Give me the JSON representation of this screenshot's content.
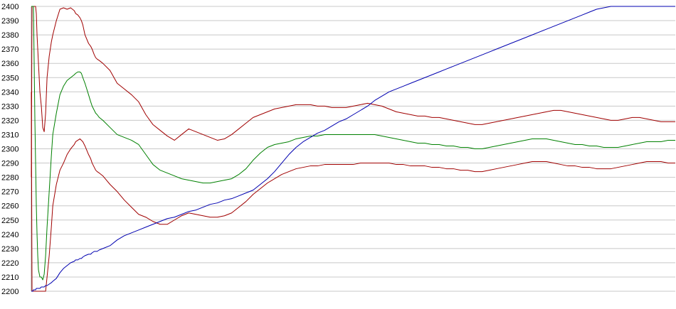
{
  "chart_data": {
    "type": "line",
    "title": "",
    "xlabel": "",
    "ylabel": "",
    "ylim": [
      2200,
      2400
    ],
    "yticks": [
      2200,
      2210,
      2220,
      2230,
      2240,
      2250,
      2260,
      2270,
      2280,
      2290,
      2300,
      2310,
      2320,
      2330,
      2340,
      2350,
      2360,
      2370,
      2380,
      2390,
      2400
    ],
    "grid": true,
    "legend": "none",
    "x": [
      0,
      1,
      2,
      3,
      4,
      5,
      6,
      7,
      8,
      9,
      10,
      12,
      14,
      16,
      18,
      20,
      22,
      25,
      28,
      30,
      35,
      40,
      45,
      50,
      55,
      60,
      62,
      65,
      68,
      70,
      72,
      75,
      80,
      83,
      85,
      88,
      90,
      92,
      95,
      100,
      110,
      120,
      130,
      140,
      150,
      160,
      170,
      180,
      190,
      200,
      210,
      220,
      230,
      240,
      250,
      260,
      270,
      280,
      290,
      300,
      310,
      320,
      330,
      340,
      350,
      360,
      370,
      380,
      390,
      400,
      410,
      420,
      430,
      440,
      450,
      460,
      470,
      480,
      490,
      500,
      510,
      520,
      530,
      540,
      550,
      560,
      570,
      580,
      590,
      600,
      610,
      620,
      630,
      640,
      650,
      660,
      670,
      680,
      690,
      700,
      710,
      720,
      730,
      740,
      750,
      760,
      770,
      780,
      790,
      800,
      810,
      820,
      830,
      840,
      850,
      860,
      870,
      880,
      890,
      900
    ],
    "series": [
      {
        "color": "#a00000",
        "values": [
          2280,
          2400,
          2400,
          2400,
          2400,
          2400,
          2400,
          2395,
          2380,
          2370,
          2360,
          2340,
          2330,
          2315,
          2312,
          2325,
          2350,
          2365,
          2375,
          2380,
          2390,
          2398,
          2399,
          2398,
          2399,
          2397,
          2395,
          2394,
          2392,
          2390,
          2387,
          2380,
          2374,
          2372,
          2370,
          2366,
          2364,
          2363,
          2362,
          2360,
          2355,
          2346,
          2342,
          2338,
          2333,
          2324,
          2317,
          2313,
          2309,
          2306,
          2310,
          2314,
          2312,
          2310,
          2308,
          2306,
          2307,
          2310,
          2314,
          2318,
          2322,
          2324,
          2326,
          2328,
          2329,
          2330,
          2331,
          2331,
          2331,
          2330,
          2330,
          2329,
          2329,
          2329,
          2330,
          2331,
          2332,
          2331,
          2330,
          2328,
          2326,
          2325,
          2324,
          2323,
          2323,
          2322,
          2322,
          2321,
          2320,
          2319,
          2318,
          2317,
          2317,
          2318,
          2319,
          2320,
          2321,
          2322,
          2323,
          2324,
          2325,
          2326,
          2327,
          2327,
          2326,
          2325,
          2324,
          2323,
          2322,
          2321,
          2320,
          2320,
          2321,
          2322,
          2322,
          2321,
          2320,
          2319,
          2319,
          2319
        ]
      },
      {
        "color": "#008000",
        "values": [
          2400,
          2400,
          2400,
          2400,
          2360,
          2320,
          2290,
          2260,
          2240,
          2225,
          2215,
          2210,
          2210,
          2208,
          2212,
          2225,
          2245,
          2270,
          2295,
          2310,
          2325,
          2338,
          2344,
          2348,
          2350,
          2352,
          2353,
          2354,
          2354,
          2353,
          2350,
          2346,
          2338,
          2333,
          2330,
          2327,
          2325,
          2324,
          2322,
          2320,
          2315,
          2310,
          2308,
          2306,
          2303,
          2296,
          2289,
          2285,
          2283,
          2281,
          2279,
          2278,
          2277,
          2276,
          2276,
          2277,
          2278,
          2279,
          2282,
          2286,
          2292,
          2297,
          2301,
          2303,
          2304,
          2305,
          2307,
          2308,
          2309,
          2309,
          2310,
          2310,
          2310,
          2310,
          2310,
          2310,
          2310,
          2310,
          2309,
          2308,
          2307,
          2306,
          2305,
          2304,
          2304,
          2303,
          2303,
          2302,
          2302,
          2301,
          2301,
          2300,
          2300,
          2301,
          2302,
          2303,
          2304,
          2305,
          2306,
          2307,
          2307,
          2307,
          2306,
          2305,
          2304,
          2303,
          2303,
          2302,
          2302,
          2301,
          2301,
          2301,
          2302,
          2303,
          2304,
          2305,
          2305,
          2305,
          2306,
          2306
        ]
      },
      {
        "color": "#a00000",
        "values": [
          2340,
          2200,
          2200,
          2200,
          2200,
          2200,
          2200,
          2200,
          2200,
          2200,
          2200,
          2200,
          2200,
          2200,
          2200,
          2200,
          2210,
          2225,
          2245,
          2260,
          2275,
          2285,
          2290,
          2296,
          2300,
          2303,
          2305,
          2306,
          2307,
          2306,
          2305,
          2302,
          2296,
          2293,
          2290,
          2287,
          2285,
          2284,
          2283,
          2281,
          2275,
          2270,
          2264,
          2259,
          2254,
          2252,
          2249,
          2247,
          2247,
          2250,
          2253,
          2255,
          2254,
          2253,
          2252,
          2252,
          2253,
          2255,
          2259,
          2263,
          2268,
          2272,
          2276,
          2279,
          2282,
          2284,
          2286,
          2287,
          2288,
          2288,
          2289,
          2289,
          2289,
          2289,
          2289,
          2290,
          2290,
          2290,
          2290,
          2290,
          2289,
          2289,
          2288,
          2288,
          2288,
          2287,
          2287,
          2286,
          2286,
          2285,
          2285,
          2284,
          2284,
          2285,
          2286,
          2287,
          2288,
          2289,
          2290,
          2291,
          2291,
          2291,
          2290,
          2289,
          2288,
          2288,
          2287,
          2287,
          2286,
          2286,
          2286,
          2287,
          2288,
          2289,
          2290,
          2291,
          2291,
          2291,
          2290,
          2290
        ]
      },
      {
        "color": "#0000b0",
        "values": [
          2200,
          2200,
          2200,
          2201,
          2201,
          2201,
          2201,
          2202,
          2202,
          2202,
          2202,
          2202,
          2203,
          2203,
          2203,
          2204,
          2204,
          2205,
          2206,
          2207,
          2209,
          2213,
          2216,
          2218,
          2220,
          2221,
          2222,
          2222,
          2223,
          2223,
          2224,
          2225,
          2226,
          2226,
          2227,
          2228,
          2228,
          2228,
          2229,
          2230,
          2232,
          2236,
          2239,
          2241,
          2243,
          2245,
          2247,
          2249,
          2251,
          2252,
          2254,
          2256,
          2257,
          2259,
          2261,
          2262,
          2264,
          2265,
          2267,
          2269,
          2271,
          2275,
          2279,
          2284,
          2290,
          2296,
          2301,
          2305,
          2308,
          2311,
          2313,
          2316,
          2319,
          2321,
          2324,
          2327,
          2330,
          2334,
          2337,
          2340,
          2342,
          2344,
          2346,
          2348,
          2350,
          2352,
          2354,
          2356,
          2358,
          2360,
          2362,
          2364,
          2366,
          2368,
          2370,
          2372,
          2374,
          2376,
          2378,
          2380,
          2382,
          2384,
          2386,
          2388,
          2390,
          2392,
          2394,
          2396,
          2398,
          2399,
          2400,
          2400,
          2400,
          2400,
          2400,
          2400,
          2400,
          2400,
          2400,
          2400
        ]
      }
    ]
  }
}
